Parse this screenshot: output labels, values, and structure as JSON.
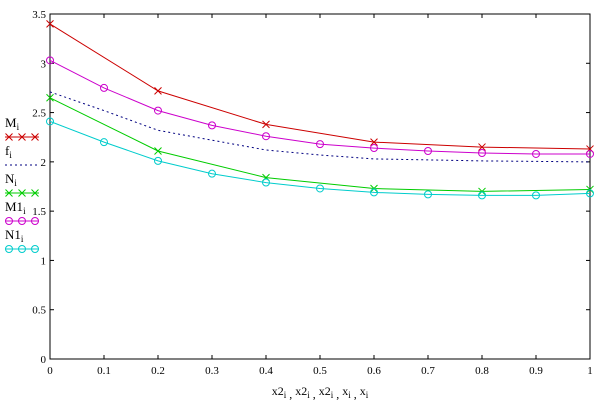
{
  "chart_data": {
    "type": "line",
    "title": "",
    "xlabel": "x2i , x2i , x2i , xi , xi",
    "ylabel": "",
    "xlim": [
      0,
      1
    ],
    "ylim": [
      0,
      3.5
    ],
    "x_ticks": [
      "0",
      "0.1",
      "0.2",
      "0.3",
      "0.4",
      "0.5",
      "0.6",
      "0.7",
      "0.8",
      "0.9",
      "1"
    ],
    "y_ticks": [
      "0",
      "0.5",
      "1",
      "1.5",
      "2",
      "2.5",
      "3",
      "3.5"
    ],
    "legend_position": "left",
    "series": [
      {
        "name": "Mi",
        "base": "M",
        "sub": "i",
        "color": "#cc0000",
        "marker": "x",
        "dash": "",
        "x": [
          0,
          0.2,
          0.4,
          0.6,
          0.8,
          1.0
        ],
        "values": [
          3.4,
          2.72,
          2.38,
          2.2,
          2.15,
          2.13
        ]
      },
      {
        "name": "fi",
        "base": "f",
        "sub": "i",
        "color": "#000080",
        "marker": "none",
        "dash": "2,3",
        "x": [
          0,
          0.1,
          0.2,
          0.3,
          0.4,
          0.5,
          0.6,
          0.7,
          0.8,
          0.9,
          1.0
        ],
        "values": [
          2.71,
          2.52,
          2.32,
          2.22,
          2.12,
          2.07,
          2.03,
          2.02,
          2.01,
          2.005,
          2.0
        ]
      },
      {
        "name": "Ni",
        "base": "N",
        "sub": "i",
        "color": "#00cc00",
        "marker": "x",
        "dash": "",
        "x": [
          0,
          0.2,
          0.4,
          0.6,
          0.8,
          1.0
        ],
        "values": [
          2.65,
          2.11,
          1.84,
          1.73,
          1.7,
          1.72
        ]
      },
      {
        "name": "M1i",
        "base": "M1",
        "sub": "i",
        "color": "#cc00cc",
        "marker": "o",
        "dash": "",
        "x": [
          0,
          0.1,
          0.2,
          0.3,
          0.4,
          0.5,
          0.6,
          0.7,
          0.8,
          0.9,
          1.0
        ],
        "values": [
          3.03,
          2.75,
          2.52,
          2.37,
          2.26,
          2.18,
          2.14,
          2.11,
          2.09,
          2.08,
          2.08
        ]
      },
      {
        "name": "N1i",
        "base": "N1",
        "sub": "i",
        "color": "#00cccc",
        "marker": "o",
        "dash": "",
        "x": [
          0,
          0.1,
          0.2,
          0.3,
          0.4,
          0.5,
          0.6,
          0.7,
          0.8,
          0.9,
          1.0
        ],
        "values": [
          2.41,
          2.2,
          2.01,
          1.88,
          1.79,
          1.73,
          1.69,
          1.67,
          1.66,
          1.66,
          1.68
        ]
      }
    ]
  }
}
